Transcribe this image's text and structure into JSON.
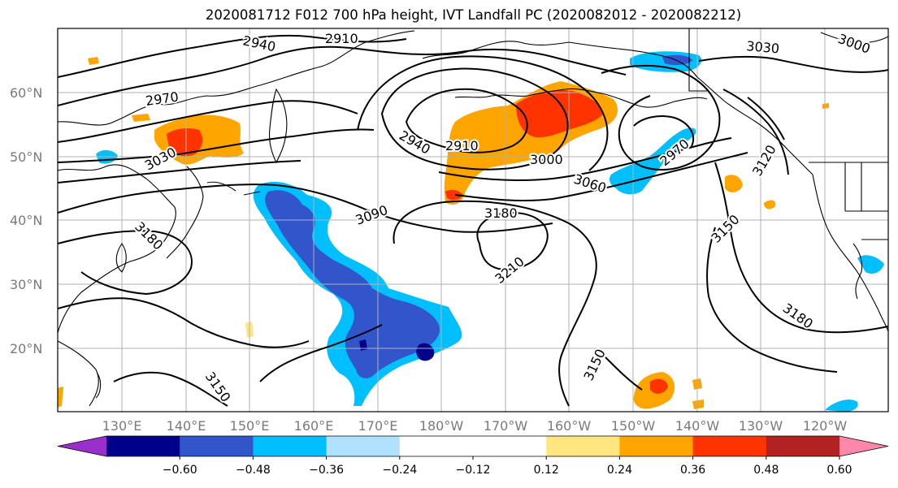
{
  "title": "2020081712 F012 700 hPa height, IVT Landfall PC (2020082012 - 2020082212)",
  "lat_labels": [
    "60°N",
    "50°N",
    "40°N",
    "30°N",
    "20°N"
  ],
  "lon_labels": [
    "130°E",
    "140°E",
    "150°E",
    "160°E",
    "170°E",
    "180°W",
    "170°W",
    "160°W",
    "150°W",
    "140°W",
    "130°W",
    "120°W"
  ],
  "contour_labels": [
    "2940",
    "2910",
    "2970",
    "3030",
    "3180",
    "2940",
    "2910",
    "3000",
    "3060",
    "3090",
    "3180",
    "3210",
    "2970",
    "3030",
    "3000",
    "3120",
    "3150",
    "3180",
    "3150",
    "3150"
  ],
  "colorbar": {
    "colors": [
      "#9b2fcc",
      "#00008b",
      "#3355cc",
      "#00bfff",
      "#b0e2ff",
      "#ffffff",
      "#ffffff",
      "#ffe680",
      "#ffa500",
      "#ff3300",
      "#b22222",
      "#ff88aa"
    ],
    "tick_labels": [
      "−0.60",
      "−0.48",
      "−0.36",
      "−0.24",
      "−0.12",
      "0.12",
      "0.24",
      "0.36",
      "0.48",
      "0.60"
    ]
  }
}
